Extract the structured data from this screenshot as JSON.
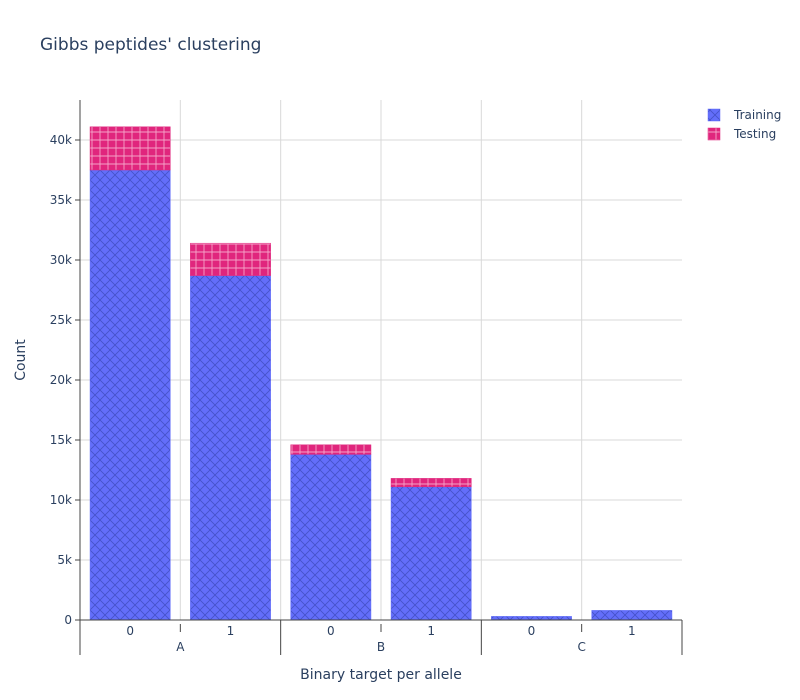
{
  "chart_data": {
    "type": "bar",
    "stacked": true,
    "title": "Gibbs peptides' clustering",
    "xlabel": "Binary target per allele",
    "ylabel": "Count",
    "groups": [
      {
        "name": "A",
        "categories": [
          "0",
          "1"
        ]
      },
      {
        "name": "B",
        "categories": [
          "0",
          "1"
        ]
      },
      {
        "name": "C",
        "categories": [
          "0",
          "1"
        ]
      }
    ],
    "series": [
      {
        "name": "Training",
        "color": "#636efa",
        "pattern": "crosshatch-x",
        "values": [
          37500,
          28700,
          13800,
          11100,
          300,
          800
        ]
      },
      {
        "name": "Testing",
        "color": "#e0267d",
        "pattern": "grid-plus",
        "values": [
          3600,
          2700,
          800,
          700,
          0,
          0
        ]
      }
    ],
    "ylim": [
      0,
      43333
    ],
    "yticks": [
      0,
      5000,
      10000,
      15000,
      20000,
      25000,
      30000,
      35000,
      40000
    ],
    "ytick_labels": [
      "0",
      "5k",
      "10k",
      "15k",
      "20k",
      "25k",
      "30k",
      "35k",
      "40k"
    ],
    "grid": true,
    "legend_position": "top-right"
  }
}
